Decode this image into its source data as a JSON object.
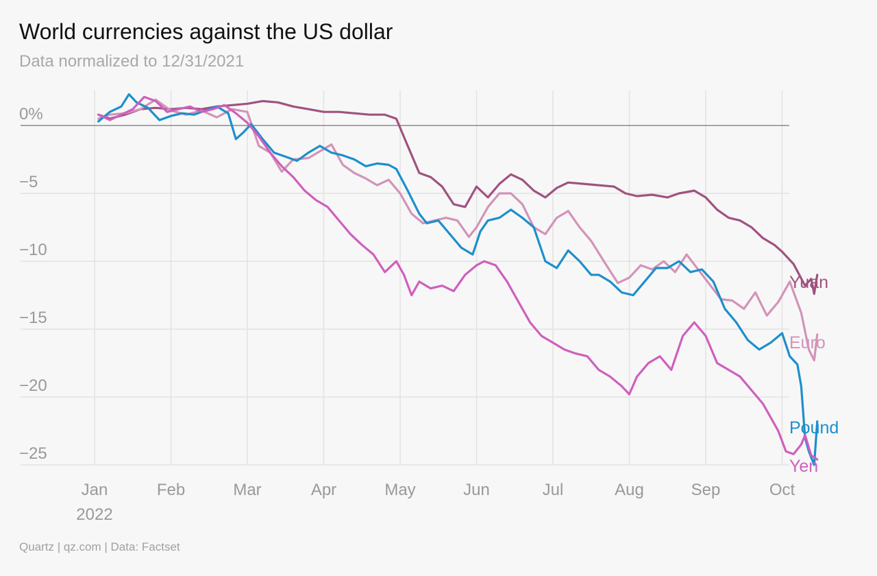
{
  "title": "World currencies against the US dollar",
  "subtitle": "Data normalized to 12/31/2021",
  "source": "Quartz | qz.com | Data: Factset",
  "chart_data": {
    "type": "line",
    "title": "World currencies against the US dollar",
    "subtitle": "Data normalized to 12/31/2021",
    "xlabel": "",
    "ylabel": "",
    "ylim": [
      -25,
      2
    ],
    "yticks": [
      {
        "value": 0,
        "label": "0%"
      },
      {
        "value": -5,
        "label": "−5"
      },
      {
        "value": -10,
        "label": "−10"
      },
      {
        "value": -15,
        "label": "−15"
      },
      {
        "value": -20,
        "label": "−20"
      },
      {
        "value": -25,
        "label": "−25"
      }
    ],
    "xlim": [
      0,
      9
    ],
    "xticks": [
      {
        "value": 0,
        "label": "Jan",
        "sublabel": "2022"
      },
      {
        "value": 1,
        "label": "Feb"
      },
      {
        "value": 2,
        "label": "Mar"
      },
      {
        "value": 3,
        "label": "Apr"
      },
      {
        "value": 4,
        "label": "May"
      },
      {
        "value": 5,
        "label": "Jun"
      },
      {
        "value": 6,
        "label": "Jul"
      },
      {
        "value": 7,
        "label": "Aug"
      },
      {
        "value": 8,
        "label": "Sep"
      },
      {
        "value": 9,
        "label": "Oct"
      }
    ],
    "grid": true,
    "legend": "direct labels at line ends (right)",
    "series": [
      {
        "name": "Yuan",
        "color": "#a0527f",
        "points": [
          [
            0.05,
            0.8
          ],
          [
            0.2,
            0.5
          ],
          [
            0.4,
            0.8
          ],
          [
            0.6,
            1.2
          ],
          [
            0.8,
            1.3
          ],
          [
            1.0,
            1.2
          ],
          [
            1.2,
            1.3
          ],
          [
            1.4,
            1.2
          ],
          [
            1.6,
            1.4
          ],
          [
            1.8,
            1.5
          ],
          [
            2.0,
            1.6
          ],
          [
            2.2,
            1.8
          ],
          [
            2.4,
            1.7
          ],
          [
            2.6,
            1.4
          ],
          [
            2.8,
            1.2
          ],
          [
            3.0,
            1.0
          ],
          [
            3.2,
            1.0
          ],
          [
            3.4,
            0.9
          ],
          [
            3.6,
            0.8
          ],
          [
            3.8,
            0.8
          ],
          [
            3.95,
            0.5
          ],
          [
            4.1,
            -1.5
          ],
          [
            4.25,
            -3.5
          ],
          [
            4.4,
            -3.8
          ],
          [
            4.55,
            -4.5
          ],
          [
            4.7,
            -5.8
          ],
          [
            4.85,
            -6.0
          ],
          [
            5.0,
            -4.5
          ],
          [
            5.15,
            -5.3
          ],
          [
            5.3,
            -4.3
          ],
          [
            5.45,
            -3.6
          ],
          [
            5.6,
            -4.0
          ],
          [
            5.75,
            -4.8
          ],
          [
            5.9,
            -5.3
          ],
          [
            6.05,
            -4.6
          ],
          [
            6.2,
            -4.2
          ],
          [
            6.4,
            -4.3
          ],
          [
            6.6,
            -4.4
          ],
          [
            6.8,
            -4.5
          ],
          [
            6.95,
            -5.0
          ],
          [
            7.1,
            -5.2
          ],
          [
            7.3,
            -5.1
          ],
          [
            7.5,
            -5.3
          ],
          [
            7.65,
            -5.0
          ],
          [
            7.85,
            -4.8
          ],
          [
            8.0,
            -5.3
          ],
          [
            8.15,
            -6.2
          ],
          [
            8.3,
            -6.8
          ],
          [
            8.45,
            -7.0
          ],
          [
            8.6,
            -7.5
          ],
          [
            8.75,
            -8.3
          ],
          [
            8.9,
            -8.8
          ],
          [
            9.0,
            -9.3
          ],
          [
            9.15,
            -10.2
          ],
          [
            9.3,
            -11.8
          ],
          [
            9.38,
            -11.3
          ],
          [
            9.42,
            -12.4
          ],
          [
            9.46,
            -11.0
          ]
        ]
      },
      {
        "name": "Euro",
        "color": "#d393b8",
        "points": [
          [
            0.05,
            0.5
          ],
          [
            0.2,
            0.8
          ],
          [
            0.4,
            0.9
          ],
          [
            0.6,
            1.2
          ],
          [
            0.8,
            1.9
          ],
          [
            1.0,
            1.1
          ],
          [
            1.2,
            0.8
          ],
          [
            1.4,
            1.1
          ],
          [
            1.6,
            0.6
          ],
          [
            1.8,
            1.2
          ],
          [
            2.0,
            1.0
          ],
          [
            2.15,
            -1.5
          ],
          [
            2.3,
            -2.0
          ],
          [
            2.45,
            -3.4
          ],
          [
            2.6,
            -2.5
          ],
          [
            2.8,
            -2.4
          ],
          [
            2.95,
            -1.9
          ],
          [
            3.1,
            -1.4
          ],
          [
            3.25,
            -2.9
          ],
          [
            3.4,
            -3.5
          ],
          [
            3.55,
            -3.9
          ],
          [
            3.7,
            -4.4
          ],
          [
            3.85,
            -4.0
          ],
          [
            4.0,
            -5.0
          ],
          [
            4.15,
            -6.5
          ],
          [
            4.3,
            -7.2
          ],
          [
            4.45,
            -7.0
          ],
          [
            4.6,
            -6.8
          ],
          [
            4.75,
            -7.0
          ],
          [
            4.9,
            -8.2
          ],
          [
            5.0,
            -7.5
          ],
          [
            5.15,
            -6.0
          ],
          [
            5.3,
            -5.0
          ],
          [
            5.45,
            -5.0
          ],
          [
            5.6,
            -5.8
          ],
          [
            5.75,
            -7.5
          ],
          [
            5.9,
            -8.0
          ],
          [
            6.05,
            -6.8
          ],
          [
            6.2,
            -6.3
          ],
          [
            6.35,
            -7.5
          ],
          [
            6.5,
            -8.5
          ],
          [
            6.7,
            -10.3
          ],
          [
            6.85,
            -11.6
          ],
          [
            7.0,
            -11.2
          ],
          [
            7.15,
            -10.3
          ],
          [
            7.3,
            -10.6
          ],
          [
            7.45,
            -10.0
          ],
          [
            7.6,
            -10.8
          ],
          [
            7.75,
            -9.5
          ],
          [
            7.9,
            -10.6
          ],
          [
            8.05,
            -11.7
          ],
          [
            8.2,
            -12.8
          ],
          [
            8.35,
            -12.9
          ],
          [
            8.5,
            -13.5
          ],
          [
            8.65,
            -12.3
          ],
          [
            8.8,
            -14.0
          ],
          [
            8.95,
            -13.0
          ],
          [
            9.1,
            -11.5
          ],
          [
            9.25,
            -13.8
          ],
          [
            9.35,
            -16.5
          ],
          [
            9.42,
            -17.3
          ],
          [
            9.46,
            -15.4
          ]
        ]
      },
      {
        "name": "Pound",
        "color": "#1c8fcc",
        "points": [
          [
            0.05,
            0.3
          ],
          [
            0.2,
            1.0
          ],
          [
            0.35,
            1.4
          ],
          [
            0.45,
            2.3
          ],
          [
            0.55,
            1.7
          ],
          [
            0.7,
            1.3
          ],
          [
            0.85,
            0.4
          ],
          [
            1.0,
            0.7
          ],
          [
            1.15,
            0.9
          ],
          [
            1.3,
            0.8
          ],
          [
            1.45,
            1.1
          ],
          [
            1.6,
            1.4
          ],
          [
            1.75,
            0.9
          ],
          [
            1.85,
            -1.0
          ],
          [
            1.95,
            -0.5
          ],
          [
            2.05,
            0.1
          ],
          [
            2.2,
            -1.0
          ],
          [
            2.35,
            -2.0
          ],
          [
            2.5,
            -2.3
          ],
          [
            2.65,
            -2.6
          ],
          [
            2.8,
            -2.0
          ],
          [
            2.95,
            -1.5
          ],
          [
            3.1,
            -2.0
          ],
          [
            3.25,
            -2.2
          ],
          [
            3.4,
            -2.5
          ],
          [
            3.55,
            -3.0
          ],
          [
            3.7,
            -2.8
          ],
          [
            3.85,
            -2.9
          ],
          [
            3.95,
            -3.2
          ],
          [
            4.1,
            -4.8
          ],
          [
            4.25,
            -6.5
          ],
          [
            4.35,
            -7.2
          ],
          [
            4.5,
            -7.0
          ],
          [
            4.65,
            -8.0
          ],
          [
            4.8,
            -9.0
          ],
          [
            4.95,
            -9.5
          ],
          [
            5.05,
            -7.8
          ],
          [
            5.15,
            -7.0
          ],
          [
            5.3,
            -6.8
          ],
          [
            5.45,
            -6.2
          ],
          [
            5.6,
            -6.8
          ],
          [
            5.75,
            -7.5
          ],
          [
            5.9,
            -10.0
          ],
          [
            6.05,
            -10.5
          ],
          [
            6.2,
            -9.2
          ],
          [
            6.35,
            -10.0
          ],
          [
            6.5,
            -11.0
          ],
          [
            6.6,
            -11.0
          ],
          [
            6.75,
            -11.5
          ],
          [
            6.9,
            -12.3
          ],
          [
            7.05,
            -12.5
          ],
          [
            7.2,
            -11.5
          ],
          [
            7.35,
            -10.5
          ],
          [
            7.5,
            -10.5
          ],
          [
            7.65,
            -10.0
          ],
          [
            7.8,
            -10.8
          ],
          [
            7.95,
            -10.6
          ],
          [
            8.1,
            -11.5
          ],
          [
            8.25,
            -13.5
          ],
          [
            8.4,
            -14.5
          ],
          [
            8.55,
            -15.8
          ],
          [
            8.7,
            -16.5
          ],
          [
            8.85,
            -16.0
          ],
          [
            9.0,
            -15.3
          ],
          [
            9.1,
            -17.0
          ],
          [
            9.2,
            -17.6
          ],
          [
            9.25,
            -19.2
          ],
          [
            9.3,
            -23.0
          ],
          [
            9.35,
            -24.0
          ],
          [
            9.42,
            -25.0
          ],
          [
            9.46,
            -21.8
          ]
        ]
      },
      {
        "name": "Yen",
        "color": "#cf5fbd",
        "points": [
          [
            0.05,
            0.8
          ],
          [
            0.2,
            0.4
          ],
          [
            0.35,
            0.8
          ],
          [
            0.5,
            1.2
          ],
          [
            0.65,
            2.1
          ],
          [
            0.8,
            1.8
          ],
          [
            0.95,
            1.0
          ],
          [
            1.1,
            1.2
          ],
          [
            1.25,
            1.4
          ],
          [
            1.4,
            1.0
          ],
          [
            1.55,
            1.2
          ],
          [
            1.7,
            1.5
          ],
          [
            1.85,
            0.9
          ],
          [
            2.0,
            0.2
          ],
          [
            2.15,
            -0.8
          ],
          [
            2.3,
            -2.0
          ],
          [
            2.45,
            -3.0
          ],
          [
            2.6,
            -3.8
          ],
          [
            2.75,
            -4.8
          ],
          [
            2.9,
            -5.5
          ],
          [
            3.05,
            -6.0
          ],
          [
            3.2,
            -7.0
          ],
          [
            3.35,
            -8.0
          ],
          [
            3.5,
            -8.8
          ],
          [
            3.65,
            -9.5
          ],
          [
            3.8,
            -10.8
          ],
          [
            3.95,
            -10.0
          ],
          [
            4.05,
            -11.0
          ],
          [
            4.15,
            -12.5
          ],
          [
            4.25,
            -11.5
          ],
          [
            4.4,
            -12.0
          ],
          [
            4.55,
            -11.8
          ],
          [
            4.7,
            -12.2
          ],
          [
            4.85,
            -11.0
          ],
          [
            5.0,
            -10.3
          ],
          [
            5.1,
            -10.0
          ],
          [
            5.25,
            -10.3
          ],
          [
            5.4,
            -11.5
          ],
          [
            5.55,
            -13.0
          ],
          [
            5.7,
            -14.5
          ],
          [
            5.85,
            -15.5
          ],
          [
            6.0,
            -16.0
          ],
          [
            6.15,
            -16.5
          ],
          [
            6.3,
            -16.8
          ],
          [
            6.45,
            -17.0
          ],
          [
            6.6,
            -18.0
          ],
          [
            6.75,
            -18.5
          ],
          [
            6.9,
            -19.2
          ],
          [
            7.0,
            -19.8
          ],
          [
            7.1,
            -18.5
          ],
          [
            7.25,
            -17.5
          ],
          [
            7.4,
            -17.0
          ],
          [
            7.55,
            -18.0
          ],
          [
            7.7,
            -15.5
          ],
          [
            7.85,
            -14.5
          ],
          [
            8.0,
            -15.5
          ],
          [
            8.15,
            -17.5
          ],
          [
            8.3,
            -18.0
          ],
          [
            8.45,
            -18.5
          ],
          [
            8.6,
            -19.5
          ],
          [
            8.75,
            -20.5
          ],
          [
            8.85,
            -21.5
          ],
          [
            8.95,
            -22.5
          ],
          [
            9.05,
            -24.0
          ],
          [
            9.15,
            -24.2
          ],
          [
            9.25,
            -23.5
          ],
          [
            9.3,
            -22.8
          ],
          [
            9.38,
            -24.3
          ],
          [
            9.46,
            -24.6
          ]
        ]
      }
    ]
  }
}
